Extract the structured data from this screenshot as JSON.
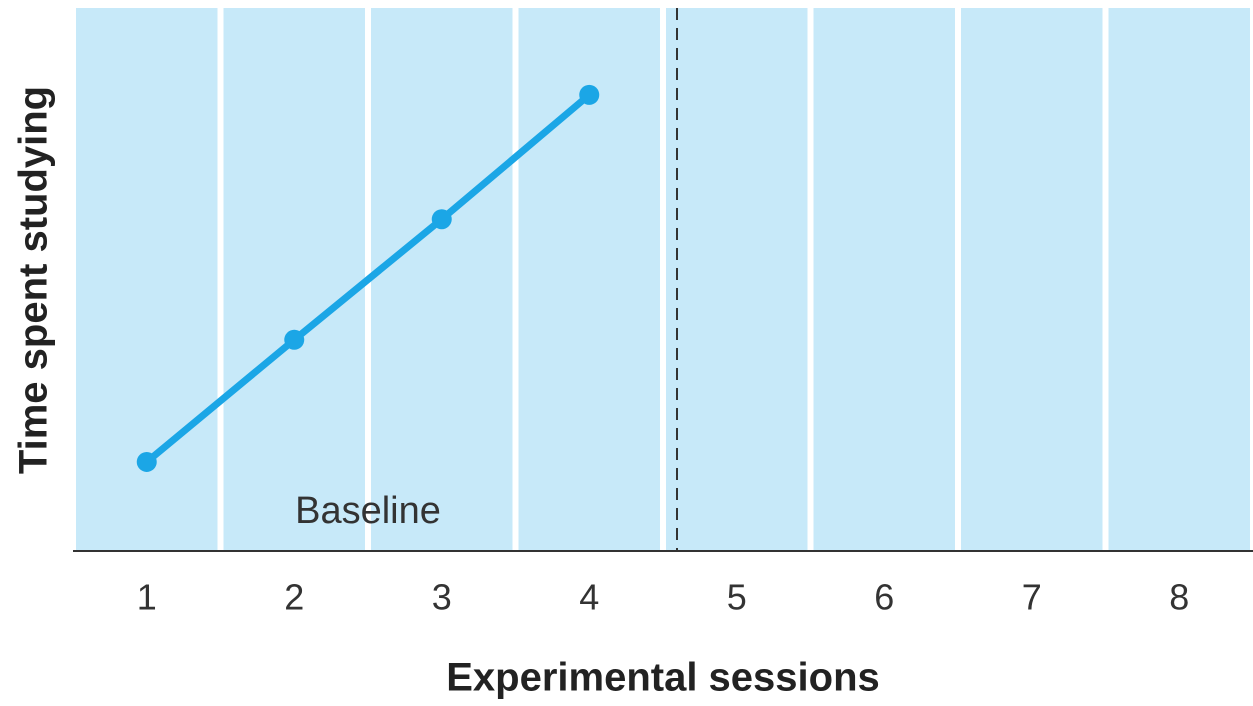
{
  "chart_data": {
    "type": "line",
    "x_label": "Experimental sessions",
    "y_label": "Time spent studying",
    "annotation": "Baseline",
    "categories": [
      "1",
      "2",
      "3",
      "4",
      "5",
      "6",
      "7",
      "8"
    ],
    "series": [
      {
        "name": "Time spent studying",
        "color": "#1ba6e6",
        "values": [
          16.4,
          38.9,
          61.1,
          84.0,
          null,
          null,
          null,
          null
        ]
      }
    ],
    "ylim": [
      0,
      100
    ]
  }
}
